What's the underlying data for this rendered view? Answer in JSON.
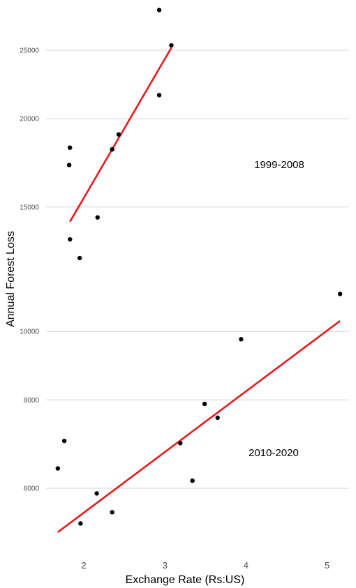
{
  "chart_data": {
    "type": "scatter",
    "xlabel": "Exchange Rate (Rs:US)",
    "ylabel": "Annual Forest Loss",
    "x_ticks": [
      "2",
      "3",
      "4",
      "5"
    ],
    "y_ticks": [
      "6000",
      "8000",
      "10000",
      "15000",
      "20000",
      "25000"
    ],
    "y_scale": "log",
    "grid": "horizontal",
    "series": [
      {
        "name": "1999-2008",
        "points": [
          {
            "x": 1.83,
            "y": 13500
          },
          {
            "x": 1.83,
            "y": 18200
          },
          {
            "x": 1.82,
            "y": 17200
          },
          {
            "x": 1.95,
            "y": 12700
          },
          {
            "x": 2.17,
            "y": 14500
          },
          {
            "x": 2.35,
            "y": 18100
          },
          {
            "x": 2.43,
            "y": 19000
          },
          {
            "x": 2.93,
            "y": 28500
          },
          {
            "x": 2.93,
            "y": 21600
          },
          {
            "x": 3.08,
            "y": 25400
          }
        ],
        "fit": {
          "x": [
            1.83,
            3.08
          ],
          "y": [
            14300,
            25200
          ]
        }
      },
      {
        "name": "2010-2020",
        "points": [
          {
            "x": 1.68,
            "y": 6400
          },
          {
            "x": 1.76,
            "y": 7000
          },
          {
            "x": 1.96,
            "y": 5350
          },
          {
            "x": 2.16,
            "y": 5900
          },
          {
            "x": 2.35,
            "y": 5550
          },
          {
            "x": 3.19,
            "y": 6950
          },
          {
            "x": 3.34,
            "y": 6150
          },
          {
            "x": 3.49,
            "y": 7900
          },
          {
            "x": 3.65,
            "y": 7550
          },
          {
            "x": 3.94,
            "y": 9750
          },
          {
            "x": 5.16,
            "y": 11300
          }
        ],
        "fit": {
          "x": [
            1.68,
            5.16
          ],
          "y": [
            5200,
            10350
          ]
        }
      }
    ],
    "labels": [
      {
        "text": "1999-2008"
      },
      {
        "text": "2010-2020"
      }
    ],
    "colors": {
      "points": "#000000",
      "fit": "#e8181b",
      "grid": "#d3d3d3"
    }
  }
}
